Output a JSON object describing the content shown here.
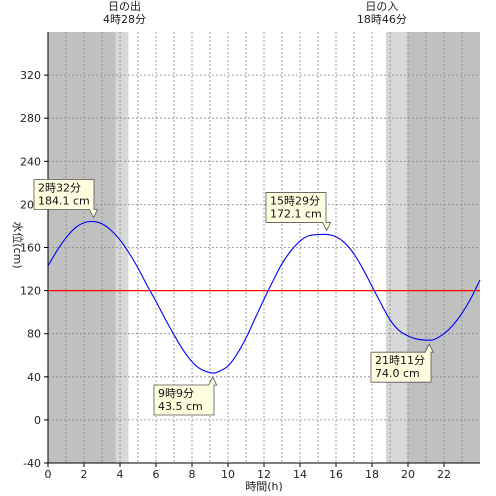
{
  "chart_data": {
    "type": "line",
    "xlabel": "時間(h)",
    "ylabel": "水位(cm)",
    "xlim": [
      0,
      24
    ],
    "ylim": [
      -40,
      360
    ],
    "x_ticks": [
      "0",
      "2",
      "4",
      "6",
      "8",
      "10",
      "12",
      "14",
      "16",
      "18",
      "20",
      "22"
    ],
    "y_ticks": [
      "-40",
      "0",
      "40",
      "80",
      "120",
      "160",
      "200",
      "240",
      "280",
      "320"
    ],
    "reference_line": {
      "value": 120,
      "color": "#ff0000"
    },
    "line_color": "#0000ff",
    "night_color": "#c0c0c0",
    "twilight_color": "#d8d8d8",
    "series": [
      {
        "x": [
          0,
          0.5,
          1,
          1.5,
          2,
          2.53,
          3,
          3.5,
          4,
          4.5,
          5,
          5.5,
          6,
          6.5,
          7,
          7.5,
          8,
          8.5,
          9.15,
          9.5,
          10,
          10.5,
          11,
          11.5,
          12,
          12.5,
          13,
          13.5,
          14,
          14.5,
          15,
          15.48,
          16,
          16.5,
          17,
          17.5,
          18,
          18.5,
          19,
          19.5,
          20,
          20.5,
          21.18,
          21.5,
          22,
          22.5,
          23,
          23.5,
          24
        ],
        "y": [
          143,
          157,
          169,
          178,
          183,
          184.1,
          182,
          176,
          167,
          155,
          141,
          125,
          110,
          94,
          79,
          65,
          54,
          47,
          43.5,
          45,
          50,
          61,
          76,
          94,
          112,
          129,
          145,
          157,
          166,
          171,
          172,
          172.1,
          170,
          164,
          154,
          140,
          124,
          108,
          93,
          83,
          78,
          75,
          74,
          75,
          80,
          88,
          99,
          113,
          130
        ]
      }
    ],
    "annotations": [
      {
        "time": "2時32分",
        "value": "184.1 cm",
        "x": 2.53,
        "y": 184.1,
        "place": "above"
      },
      {
        "time": "9時9分",
        "value": "43.5 cm",
        "x": 9.15,
        "y": 43.5,
        "place": "below"
      },
      {
        "time": "15時29分",
        "value": "172.1 cm",
        "x": 15.48,
        "y": 172.1,
        "place": "above"
      },
      {
        "time": "21時11分",
        "value": "74.0 cm",
        "x": 21.18,
        "y": 74.0,
        "place": "below"
      }
    ],
    "sunrise": {
      "label": "日の出",
      "time": "4時28分",
      "x": 4.47
    },
    "sunset": {
      "label": "日の入",
      "time": "18時46分",
      "x": 18.77
    },
    "grid": true
  }
}
